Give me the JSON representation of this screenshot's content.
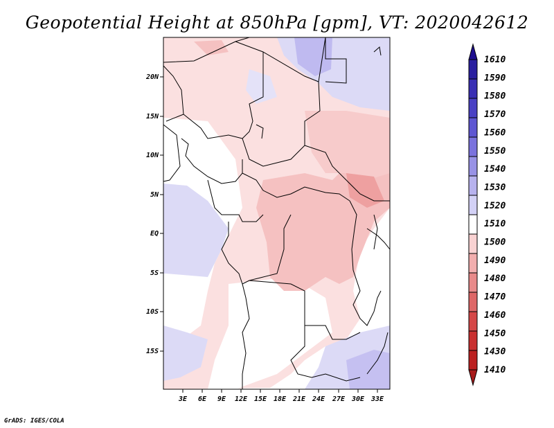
{
  "title": "Geopotential Height at 850hPa [gpm], VT: 2020042612",
  "credit": "GrADS: IGES/COLA",
  "map": {
    "lat_labels": [
      "20N",
      "15N",
      "10N",
      "5N",
      "EQ",
      "5S",
      "10S",
      "15S"
    ],
    "lon_labels": [
      "3E",
      "6E",
      "9E",
      "12E",
      "15E",
      "18E",
      "21E",
      "24E",
      "27E",
      "30E",
      "33E"
    ]
  },
  "colorbar": {
    "levels": [
      "1610",
      "1590",
      "1580",
      "1570",
      "1560",
      "1550",
      "1540",
      "1530",
      "1520",
      "1510",
      "1500",
      "1490",
      "1480",
      "1470",
      "1460",
      "1450",
      "1430",
      "1410"
    ],
    "colors": [
      "#1f0f8f",
      "#2a1fa0",
      "#3a2fb4",
      "#4a41c4",
      "#5e56d2",
      "#7a72dd",
      "#9892e6",
      "#b7b2ee",
      "#d3d1f6",
      "#ffffff",
      "#f9d2d2",
      "#f2aeae",
      "#e88a8a",
      "#de6767",
      "#d54747",
      "#c93030",
      "#bb2020",
      "#a81a1a"
    ]
  }
}
